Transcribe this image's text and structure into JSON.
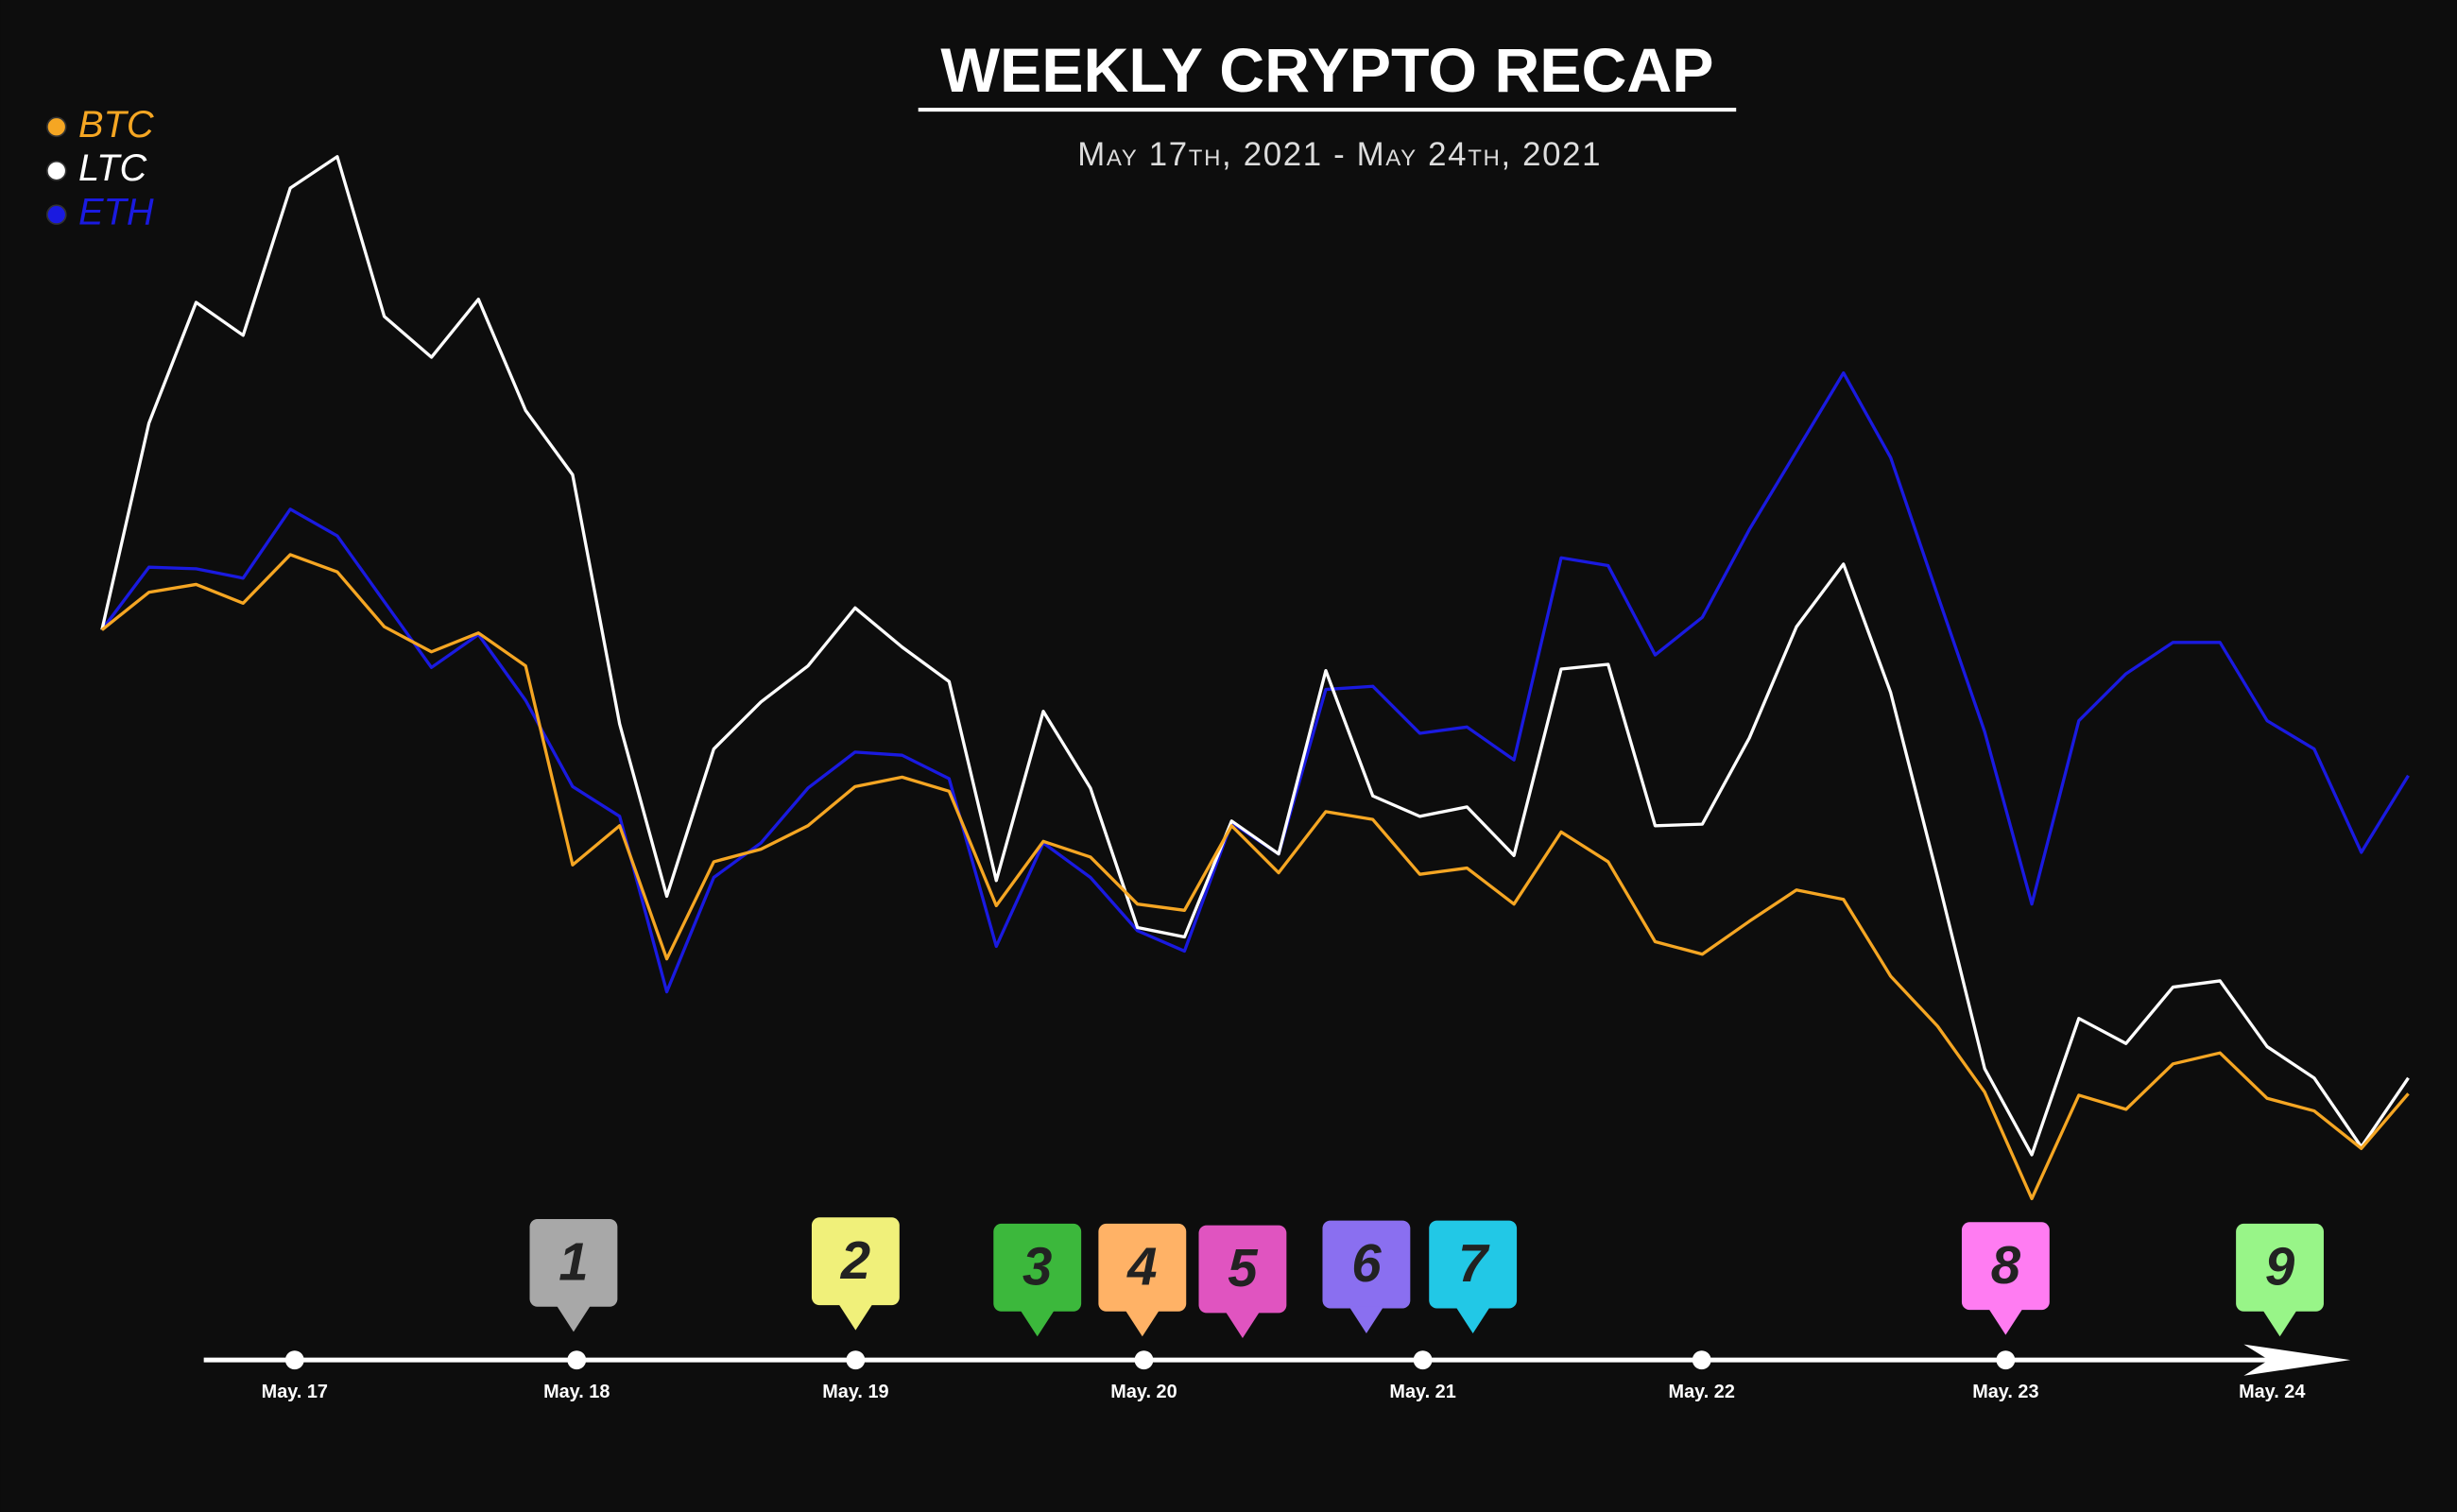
{
  "chart_data": {
    "type": "line",
    "title": "WEEKLY CRYPTO RECAP",
    "subtitle": "May 17th, 2021 - May 24th, 2021",
    "ylim": [
      0,
      800
    ],
    "legend": "top-left",
    "series": [
      {
        "name": "BTC",
        "color": "#f5a623",
        "values": [
          398,
          422,
          427,
          415,
          446,
          435,
          400,
          384,
          396,
          375,
          248,
          273,
          188,
          250,
          258,
          273,
          298,
          304,
          295,
          222,
          263,
          253,
          223,
          219,
          273,
          243,
          282,
          277,
          242,
          246,
          223,
          269,
          250,
          199,
          191,
          212,
          232,
          226,
          177,
          145,
          103,
          35,
          101,
          92,
          121,
          128,
          99,
          91,
          67,
          102
        ]
      },
      {
        "name": "LTC",
        "color": "#ffffff",
        "values": [
          398,
          530,
          607,
          586,
          680,
          700,
          598,
          572,
          609,
          538,
          497,
          338,
          228,
          322,
          352,
          375,
          412,
          387,
          365,
          238,
          346,
          297,
          208,
          202,
          276,
          255,
          372,
          292,
          279,
          285,
          254,
          373,
          376,
          273,
          274,
          329,
          400,
          440,
          358,
          240,
          118,
          63,
          150,
          134,
          170,
          174,
          132,
          112,
          68,
          112
        ]
      },
      {
        "name": "ETH",
        "color": "#1a1ae0",
        "values": [
          398,
          438,
          437,
          431,
          475,
          458,
          416,
          374,
          395,
          353,
          298,
          279,
          167,
          240,
          262,
          297,
          320,
          318,
          303,
          196,
          262,
          240,
          206,
          193,
          275,
          255,
          360,
          362,
          332,
          336,
          315,
          444,
          439,
          382,
          406,
          462,
          512,
          562,
          508,
          420,
          333,
          223,
          340,
          370,
          390,
          390,
          340,
          322,
          256,
          305
        ]
      }
    ],
    "timeline_labels": [
      "May. 17",
      "May. 18",
      "May. 19",
      "May. 20",
      "May. 21",
      "May. 22",
      "May. 23",
      "May. 24"
    ],
    "events": [
      {
        "label": "1",
        "color": "#a8a8a8"
      },
      {
        "label": "2",
        "color": "#f0f07a"
      },
      {
        "label": "3",
        "color": "#3cb83c"
      },
      {
        "label": "4",
        "color": "#ffb266"
      },
      {
        "label": "5",
        "color": "#e054c0"
      },
      {
        "label": "6",
        "color": "#8a6ff0"
      },
      {
        "label": "7",
        "color": "#22c8e6"
      },
      {
        "label": "8",
        "color": "#ff7cf2"
      },
      {
        "label": "9",
        "color": "#98f588"
      }
    ]
  }
}
